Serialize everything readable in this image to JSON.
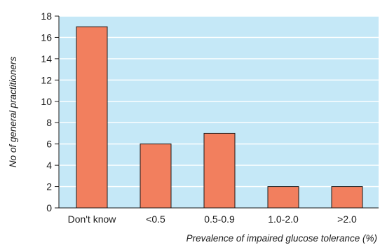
{
  "chart_data": {
    "type": "bar",
    "title": "",
    "xlabel": "Prevalence of impaired glucose tolerance (%)",
    "ylabel": "No of general practitioners",
    "categories": [
      "Don't know",
      "<0.5",
      "0.5-0.9",
      "1.0-2.0",
      ">2.0"
    ],
    "values": [
      17,
      6,
      7,
      2,
      2
    ],
    "ylim": [
      0,
      18
    ],
    "yticks": [
      0,
      2,
      4,
      6,
      8,
      10,
      12,
      14,
      16,
      18
    ],
    "grid": true,
    "legend": "none",
    "colors": {
      "plot_background": "#c5e8f7",
      "gridline": "#ffffff",
      "bar_fill": "#f27f5e",
      "bar_stroke": "#1a1a1a",
      "axis": "#1a1a1a"
    }
  }
}
